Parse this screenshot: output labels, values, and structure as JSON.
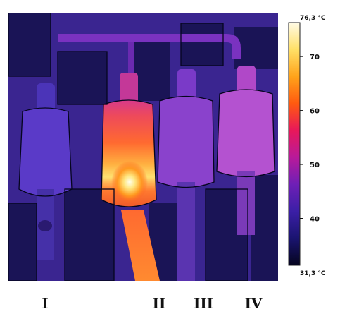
{
  "thermal_image": {
    "scale": {
      "max_label": "76,3 °C",
      "min_label": "31,3 °C",
      "ticks": [
        "70",
        "60",
        "50",
        "40"
      ],
      "colors": [
        "#fffbe6",
        "#ffe066",
        "#ffa31a",
        "#ff5a10",
        "#e8185a",
        "#b81a9a",
        "#6e1fb6",
        "#3b1fa6",
        "#1a1470",
        "#05051e"
      ]
    },
    "labels": [
      "I",
      "II",
      "III",
      "IV"
    ]
  }
}
